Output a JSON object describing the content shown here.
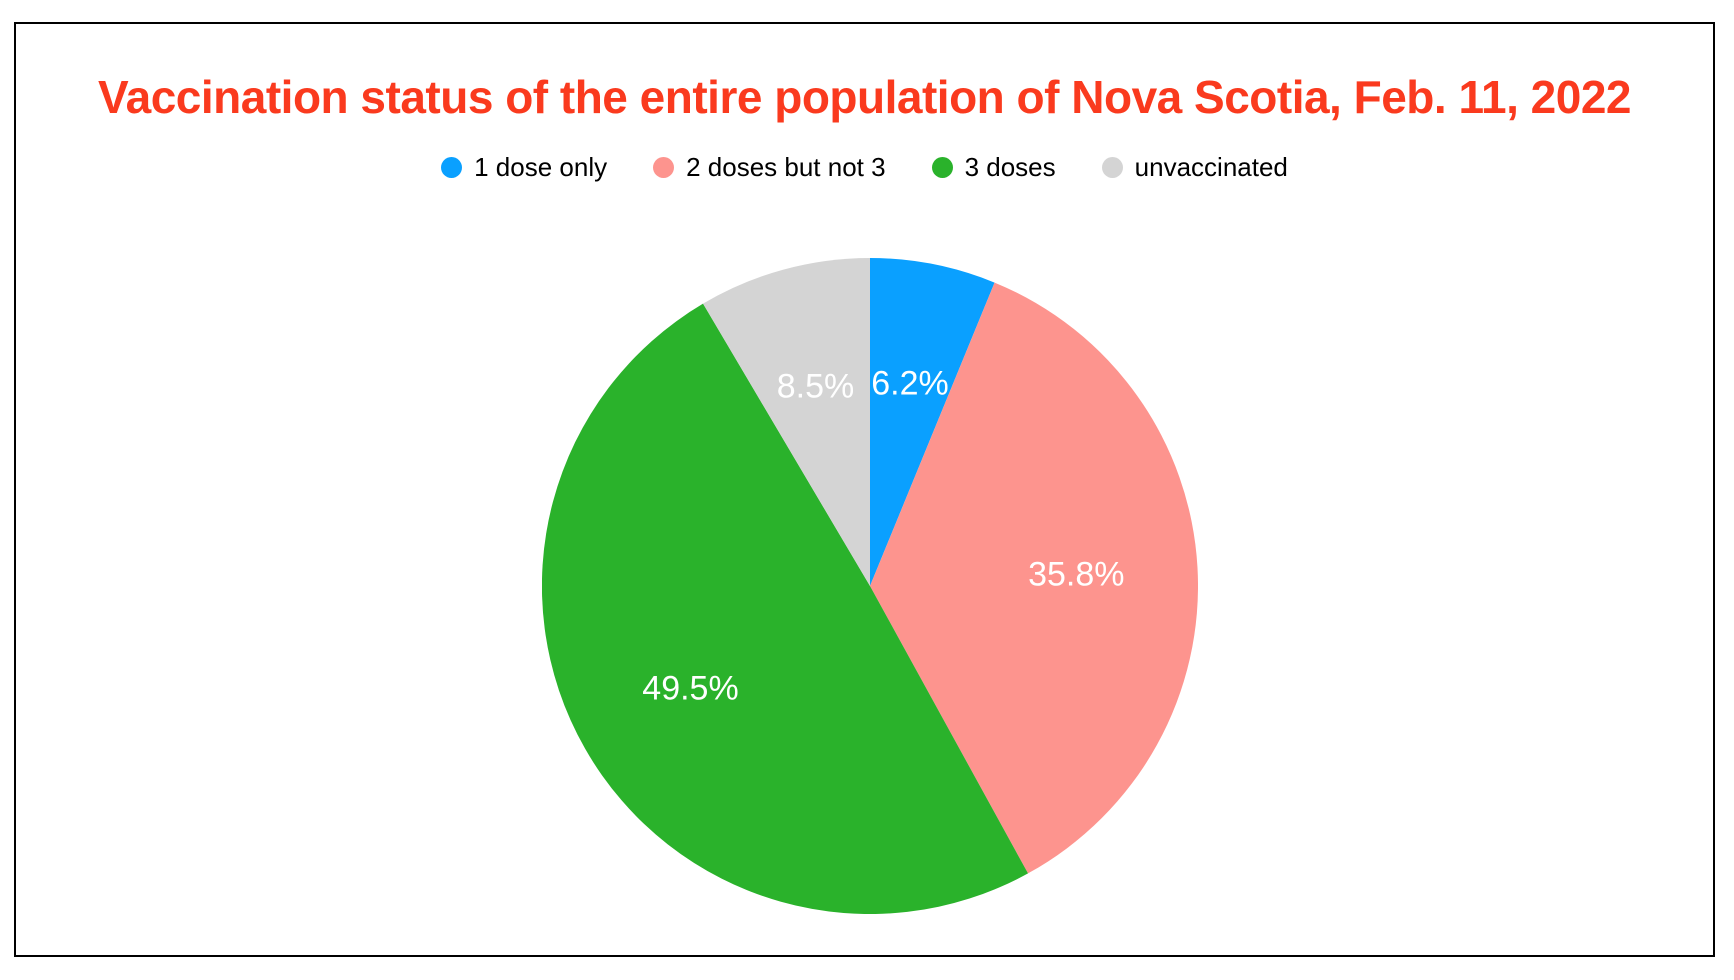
{
  "title": {
    "text": "Vaccination status of the entire population of Nova Scotia, Feb. 11, 2022",
    "color": "#fa3a1e"
  },
  "legend": {
    "position": "top-center",
    "items": [
      {
        "label": "1 dose only"
      },
      {
        "label": "2 doses but not 3"
      },
      {
        "label": "3 doses"
      },
      {
        "label": "unvaccinated"
      }
    ]
  },
  "chart_data": {
    "type": "pie",
    "title": "Vaccination status of the entire population of Nova Scotia, Feb. 11, 2022",
    "categories": [
      "1 dose only",
      "2 doses but not 3",
      "3 doses",
      "unvaccinated"
    ],
    "values": [
      6.2,
      35.8,
      49.5,
      8.5
    ],
    "display_labels": [
      "6.2%",
      "35.8%",
      "49.5%",
      "8.5%"
    ],
    "colors": [
      "#0aa0ff",
      "#fd948e",
      "#2ab22b",
      "#d4d4d4"
    ],
    "label_color": "#ffffff",
    "start_angle_deg": 0,
    "direction": "clockwise",
    "legend_position": "top",
    "title_color": "#fa3a1e"
  }
}
